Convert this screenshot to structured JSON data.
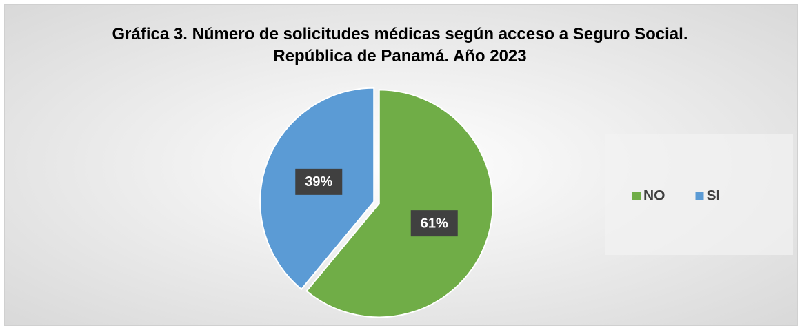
{
  "chart_data": {
    "type": "pie",
    "title": "Gráfica 3. Número de solicitudes médicas según acceso a Seguro Social. República de Panamá. Año 2023",
    "categories": [
      "NO",
      "SI"
    ],
    "values": [
      61,
      39
    ],
    "value_labels": [
      "61%",
      "39%"
    ],
    "colors": [
      "#70ad47",
      "#5b9bd5"
    ],
    "legend": "right"
  }
}
